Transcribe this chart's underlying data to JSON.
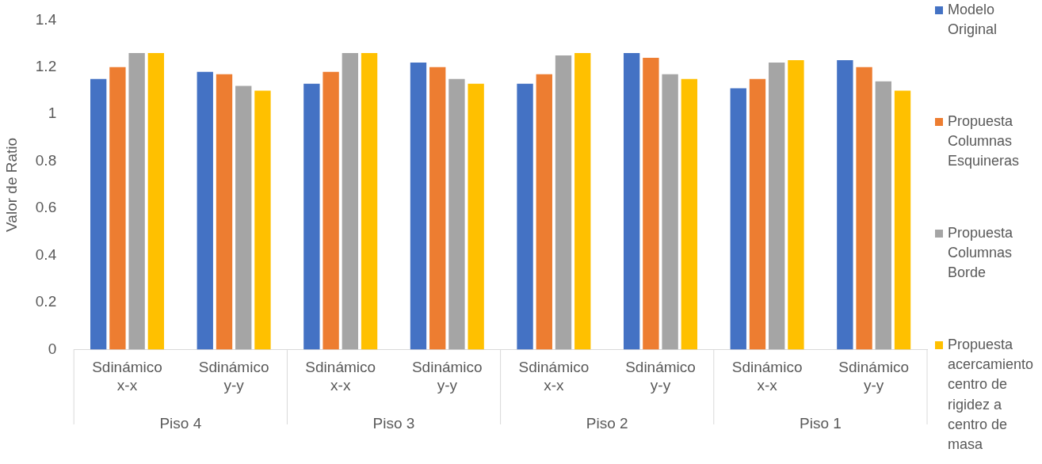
{
  "chart_data": {
    "type": "bar",
    "ylabel": "Valor de Ratio",
    "categories": [
      "Sdinámico x-x",
      "Sdinámico y-y",
      "Sdinámico x-x",
      "Sdinámico y-y",
      "Sdinámico x-x",
      "Sdinámico y-y",
      "Sdinámico x-x",
      "Sdinámico y-y"
    ],
    "series": [
      {
        "name": "Modelo Original",
        "color": "#4472c4",
        "values": [
          1.15,
          1.18,
          1.13,
          1.22,
          1.13,
          1.26,
          1.11,
          1.23
        ]
      },
      {
        "name": "Propuesta Columnas Esquineras",
        "color": "#ed7d31",
        "values": [
          1.2,
          1.17,
          1.18,
          1.2,
          1.17,
          1.24,
          1.15,
          1.2
        ]
      },
      {
        "name": "Propuesta Columnas Borde",
        "color": "#a5a5a5",
        "values": [
          1.26,
          1.12,
          1.26,
          1.15,
          1.25,
          1.17,
          1.22,
          1.14
        ]
      },
      {
        "name": "Propuesta acercamiento centro de rigidez a centro de masa",
        "color": "#ffc000",
        "values": [
          1.26,
          1.1,
          1.26,
          1.13,
          1.26,
          1.15,
          1.23,
          1.1
        ]
      }
    ],
    "annotations": [
      "Piso 4",
      "Piso 3",
      "Piso 2",
      "Piso 1"
    ],
    "ylim": [
      0,
      1.4
    ],
    "yticks": [
      0,
      0.2,
      0.4,
      0.6,
      0.8,
      1,
      1.2,
      1.4
    ],
    "grid": false,
    "legend": "right"
  }
}
